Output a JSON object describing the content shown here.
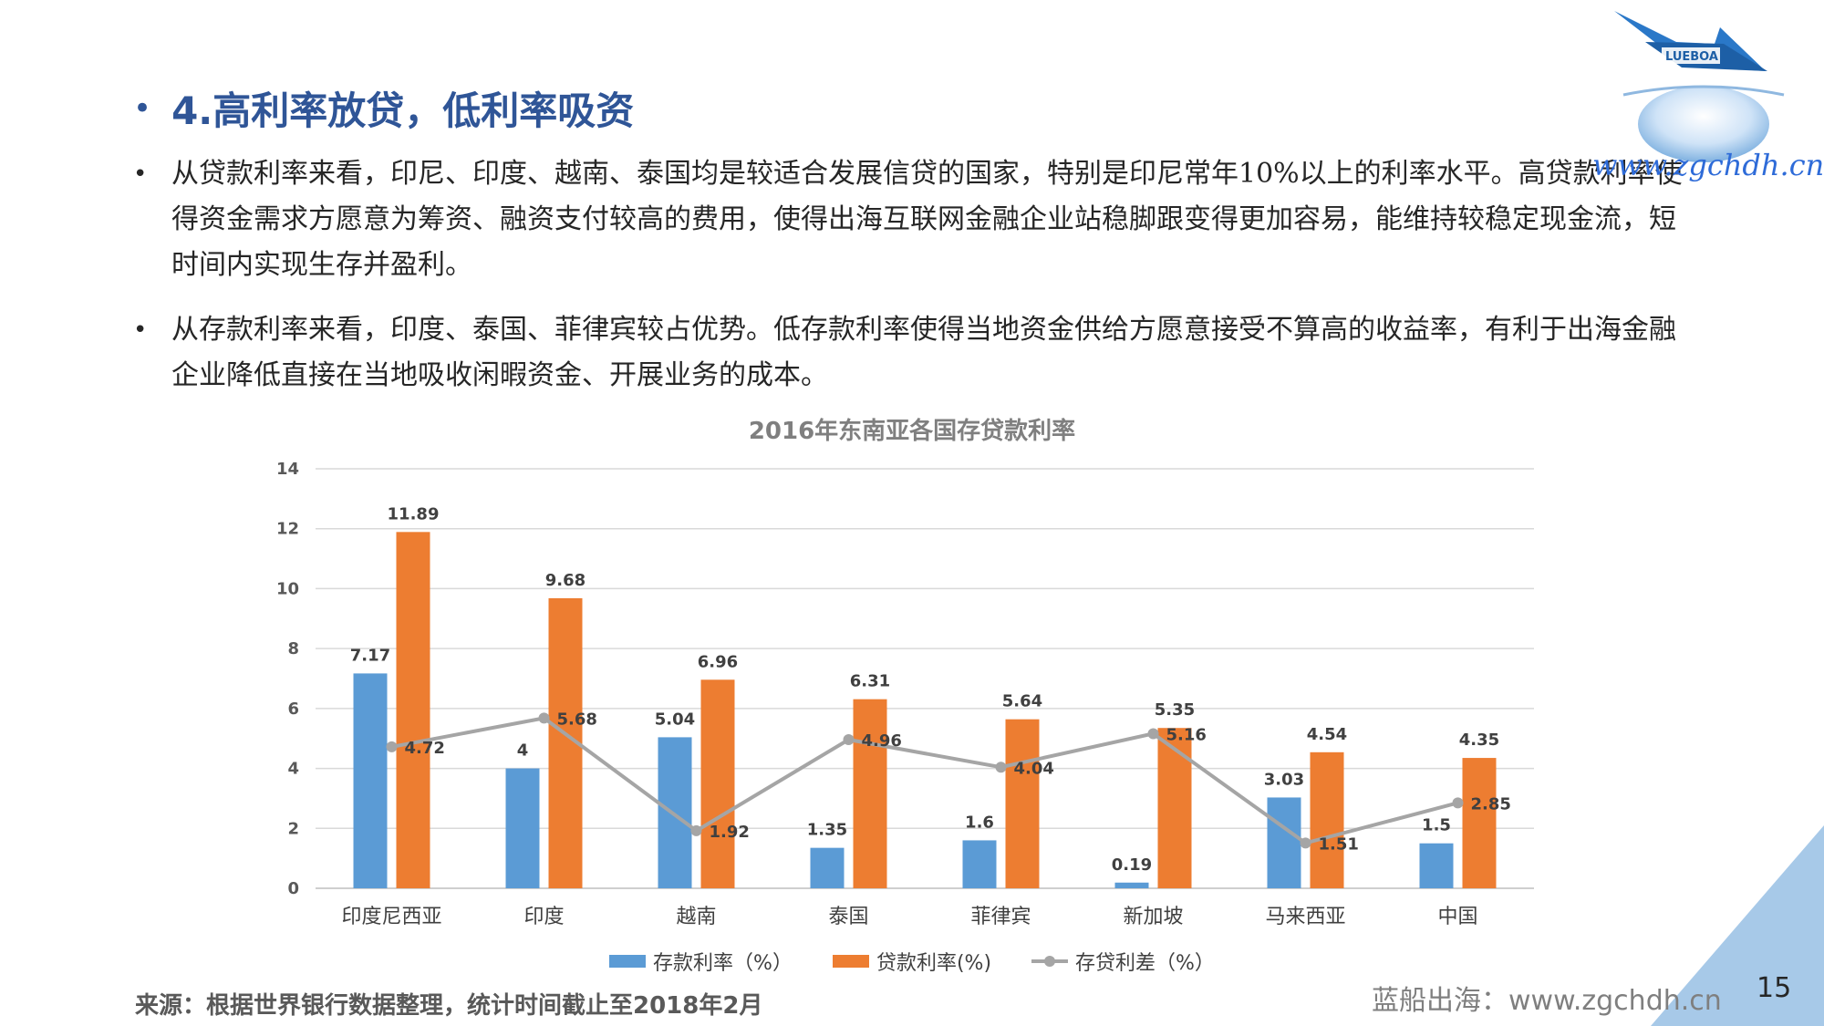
{
  "slide": {
    "title": "4.高利率放贷，低利率吸资",
    "bullets": [
      "从贷款利率来看，印尼、印度、越南、泰国均是较适合发展信贷的国家，特别是印尼常年10%以上的利率水平。高贷款利率使得资金需求方愿意为筹资、融资支付较高的费用，使得出海互联网金融企业站稳脚跟变得更加容易，能维持较稳定现金流，短时间内实现生存并盈利。",
      "从存款利率来看，印度、泰国、菲律宾较占优势。低存款利率使得当地资金供给方愿意接受不算高的收益率，有利于出海金融企业降低直接在当地吸收闲暇资金、开展业务的成本。"
    ],
    "watermark": "www.zgchdh.cn",
    "logo_text": "LUEBOA",
    "source": "来源：根据世界银行数据整理，统计时间截止至2018年2月",
    "footer_brand": "蓝船出海：www.zgchdh.cn",
    "page_number": "15"
  },
  "colors": {
    "title": "#2f5597",
    "deposit": "#5b9bd5",
    "loan": "#ed7d31",
    "spread": "#a5a5a5",
    "accent_triangle": "#9dc3e6"
  },
  "chart_data": {
    "type": "bar",
    "title": "2016年东南亚各国存贷款利率",
    "categories": [
      "印度尼西亚",
      "印度",
      "越南",
      "泰国",
      "菲律宾",
      "新加坡",
      "马来西亚",
      "中国"
    ],
    "series": [
      {
        "name": "存款利率（%）",
        "type": "bar",
        "values": [
          7.17,
          4,
          5.04,
          1.35,
          1.6,
          0.19,
          3.03,
          1.5
        ]
      },
      {
        "name": "贷款利率(%)",
        "type": "bar",
        "values": [
          11.89,
          9.68,
          6.96,
          6.31,
          5.64,
          5.35,
          4.54,
          4.35
        ]
      },
      {
        "name": "存贷利差（%）",
        "type": "line",
        "values": [
          4.72,
          5.68,
          1.92,
          4.96,
          4.04,
          5.16,
          1.51,
          2.85
        ]
      }
    ],
    "y_ticks": [
      "0",
      "2",
      "4",
      "6",
      "8",
      "10",
      "12",
      "14"
    ],
    "ylim": [
      0,
      14
    ],
    "grid": true,
    "legend": "bottom"
  }
}
